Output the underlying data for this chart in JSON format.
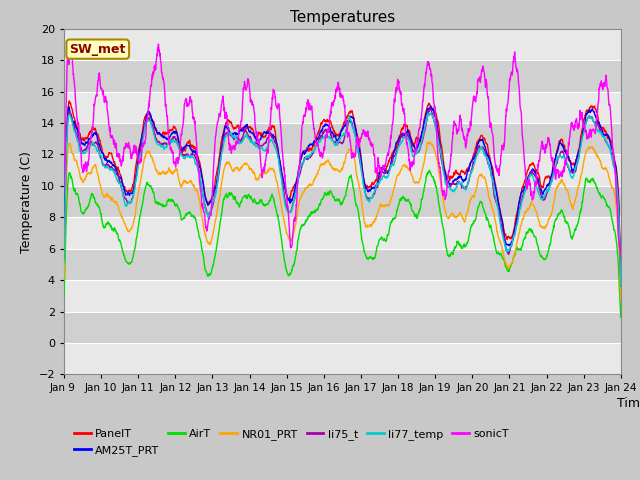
{
  "title": "Temperatures",
  "xlabel": "Time",
  "ylabel": "Temperature (C)",
  "ylim": [
    -2,
    20
  ],
  "annotation": "SW_met",
  "series": {
    "PanelT": {
      "color": "#ff0000",
      "lw": 1.0
    },
    "AM25T_PRT": {
      "color": "#0000ff",
      "lw": 1.0
    },
    "AirT": {
      "color": "#00dd00",
      "lw": 1.0
    },
    "NR01_PRT": {
      "color": "#ffa500",
      "lw": 1.0
    },
    "li75_t": {
      "color": "#aa00aa",
      "lw": 1.0
    },
    "li77_temp": {
      "color": "#00cccc",
      "lw": 1.0
    },
    "sonicT": {
      "color": "#ff00ff",
      "lw": 1.0
    }
  },
  "xtick_labels": [
    "Jan 9 ",
    "Jan 10",
    "Jan 11",
    "Jan 12",
    "Jan 13",
    "Jan 14",
    "Jan 15",
    "Jan 16",
    "Jan 17",
    "Jan 18",
    "Jan 19",
    "Jan 20",
    "Jan 21",
    "Jan 22",
    "Jan 23",
    "Jan 24"
  ],
  "bg_light": "#e8e8e8",
  "bg_dark": "#d0d0d0"
}
